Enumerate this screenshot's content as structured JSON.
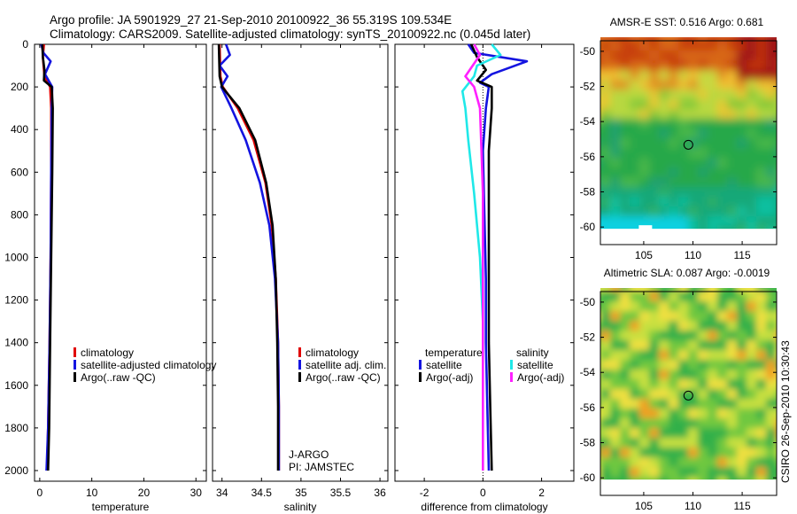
{
  "header": {
    "line1": "Argo profile: JA 5901929_27 21-Sep-2010 20100922_36 55.319S 109.534E",
    "line2": "Climatology: CARS2009. Satellite-adjusted climatology: synTS_20100922.nc (0.045d later)"
  },
  "credit": "CSIRO 26-Sep-2010 10:30:43",
  "colors": {
    "red": "#e00000",
    "blue": "#1414e0",
    "black": "#000000",
    "cyan": "#20e8e8",
    "magenta": "#ff20ff"
  },
  "chart_data": [
    {
      "id": "temperature",
      "type": "line",
      "xlabel": "temperature",
      "xlim": [
        -1,
        32
      ],
      "ylim": [
        2050,
        0
      ],
      "xticks": [
        0,
        10,
        20,
        30
      ],
      "yticks": [
        0,
        200,
        400,
        600,
        800,
        1000,
        1200,
        1400,
        1600,
        1800,
        2000
      ],
      "legend": {
        "position": "lower-right",
        "entries": [
          {
            "label": "climatology",
            "color": "red"
          },
          {
            "label": "satellite-adjusted climatology",
            "color": "blue"
          },
          {
            "label": "Argo(..raw -QC)",
            "color": "black"
          }
        ]
      },
      "series": [
        {
          "name": "climatology",
          "color": "red",
          "points": [
            [
              0.8,
              0
            ],
            [
              0.6,
              60
            ],
            [
              0.9,
              150
            ],
            [
              2.0,
              200
            ],
            [
              2.2,
              300
            ],
            [
              2.2,
              600
            ],
            [
              2.1,
              1000
            ],
            [
              1.9,
              1400
            ],
            [
              1.6,
              1800
            ],
            [
              1.4,
              2000
            ]
          ]
        },
        {
          "name": "satellite-adjusted climatology",
          "color": "blue",
          "points": [
            [
              0.3,
              0
            ],
            [
              0.7,
              40
            ],
            [
              2.1,
              80
            ],
            [
              1.0,
              140
            ],
            [
              2.4,
              200
            ],
            [
              2.3,
              300
            ],
            [
              2.2,
              600
            ],
            [
              2.1,
              1000
            ],
            [
              1.9,
              1400
            ],
            [
              1.6,
              1800
            ],
            [
              1.3,
              2000
            ]
          ]
        },
        {
          "name": "Argo(..raw -QC)",
          "color": "black",
          "points": [
            [
              0.5,
              0
            ],
            [
              0.6,
              60
            ],
            [
              0.9,
              120
            ],
            [
              0.8,
              170
            ],
            [
              2.3,
              200
            ],
            [
              2.5,
              300
            ],
            [
              2.4,
              600
            ],
            [
              2.2,
              1000
            ],
            [
              2.0,
              1400
            ],
            [
              1.8,
              1800
            ],
            [
              1.6,
              2000
            ]
          ]
        }
      ]
    },
    {
      "id": "salinity",
      "type": "line",
      "xlabel": "salinity",
      "xlim": [
        33.88,
        36.1
      ],
      "ylim": [
        2050,
        0
      ],
      "xticks": [
        34,
        34.5,
        35,
        35.5,
        36
      ],
      "xtick_labels": [
        "34",
        "34.5",
        "35",
        "35.5",
        "36"
      ],
      "yticks": [
        0,
        200,
        400,
        600,
        800,
        1000,
        1200,
        1400,
        1600,
        1800,
        2000
      ],
      "legend": {
        "position": "lower-right",
        "entries": [
          {
            "label": "climatology",
            "color": "red"
          },
          {
            "label": "satellite adj. clim.",
            "color": "blue"
          },
          {
            "label": "Argo(..raw -QC)",
            "color": "black"
          }
        ]
      },
      "annotations": [
        "J-ARGO",
        "PI: JAMSTEC"
      ],
      "series": [
        {
          "name": "climatology",
          "color": "red",
          "points": [
            [
              33.97,
              0
            ],
            [
              33.98,
              150
            ],
            [
              34.01,
              200
            ],
            [
              34.2,
              300
            ],
            [
              34.4,
              450
            ],
            [
              34.55,
              650
            ],
            [
              34.63,
              850
            ],
            [
              34.68,
              1100
            ],
            [
              34.71,
              1400
            ],
            [
              34.72,
              1700
            ],
            [
              34.72,
              2000
            ]
          ]
        },
        {
          "name": "satellite adj. clim.",
          "color": "blue",
          "points": [
            [
              34.05,
              0
            ],
            [
              34.1,
              50
            ],
            [
              33.97,
              100
            ],
            [
              34.07,
              150
            ],
            [
              33.99,
              200
            ],
            [
              34.12,
              300
            ],
            [
              34.3,
              450
            ],
            [
              34.48,
              650
            ],
            [
              34.6,
              850
            ],
            [
              34.67,
              1100
            ],
            [
              34.71,
              1400
            ],
            [
              34.72,
              1700
            ],
            [
              34.72,
              2000
            ]
          ]
        },
        {
          "name": "Argo(..raw -QC)",
          "color": "black",
          "points": [
            [
              33.96,
              0
            ],
            [
              33.97,
              150
            ],
            [
              34.0,
              200
            ],
            [
              34.22,
              300
            ],
            [
              34.42,
              450
            ],
            [
              34.56,
              650
            ],
            [
              34.64,
              850
            ],
            [
              34.68,
              1100
            ],
            [
              34.7,
              1400
            ],
            [
              34.71,
              1700
            ],
            [
              34.71,
              2000
            ]
          ]
        }
      ]
    },
    {
      "id": "difference",
      "type": "line",
      "xlabel": "difference from climatology",
      "xlim": [
        -3,
        3.1
      ],
      "ylim": [
        2050,
        0
      ],
      "xticks": [
        -2,
        0,
        2
      ],
      "yticks": [
        0,
        200,
        400,
        600,
        800,
        1000,
        1200,
        1400,
        1600,
        1800,
        2000
      ],
      "legend": {
        "position": "lower-right",
        "entries": [
          {
            "label": "temperature",
            "color": "none"
          },
          {
            "label": "satellite",
            "color": "blue"
          },
          {
            "label": "Argo(-adj)",
            "color": "black"
          },
          {
            "label": "salinity",
            "color": "none"
          },
          {
            "label": "satellite",
            "color": "cyan"
          },
          {
            "label": "Argo(-adj)",
            "color": "magenta"
          }
        ]
      },
      "series": [
        {
          "name": "temperature satellite",
          "color": "blue",
          "points": [
            [
              -0.5,
              0
            ],
            [
              -0.3,
              40
            ],
            [
              1.5,
              80
            ],
            [
              0.3,
              140
            ],
            [
              -0.1,
              180
            ],
            [
              0.2,
              200
            ],
            [
              0.1,
              300
            ],
            [
              0,
              500
            ],
            [
              0.05,
              800
            ],
            [
              0.1,
              1100
            ],
            [
              0.1,
              1400
            ],
            [
              0.15,
              1700
            ],
            [
              0.2,
              2000
            ]
          ]
        },
        {
          "name": "temperature Argo(-adj)",
          "color": "black",
          "points": [
            [
              -0.4,
              0
            ],
            [
              -0.2,
              60
            ],
            [
              0.1,
              120
            ],
            [
              -0.2,
              170
            ],
            [
              0.3,
              200
            ],
            [
              0.3,
              300
            ],
            [
              0.2,
              500
            ],
            [
              0.2,
              800
            ],
            [
              0.2,
              1100
            ],
            [
              0.2,
              1400
            ],
            [
              0.25,
              1700
            ],
            [
              0.3,
              2000
            ]
          ]
        },
        {
          "name": "salinity satellite",
          "color": "cyan",
          "points": [
            [
              0.3,
              0
            ],
            [
              0.6,
              50
            ],
            [
              -0.2,
              100
            ],
            [
              -0.3,
              150
            ],
            [
              -0.7,
              220
            ],
            [
              -0.6,
              300
            ],
            [
              -0.5,
              450
            ],
            [
              -0.3,
              700
            ],
            [
              -0.1,
              1000
            ],
            [
              0,
              1300
            ],
            [
              0,
              1600
            ],
            [
              0,
              2000
            ]
          ]
        },
        {
          "name": "salinity Argo(-adj)",
          "color": "magenta",
          "points": [
            [
              -0.3,
              0
            ],
            [
              -0.1,
              50
            ],
            [
              -0.6,
              150
            ],
            [
              -0.3,
              200
            ],
            [
              -0.1,
              300
            ],
            [
              -0.05,
              500
            ],
            [
              0,
              700
            ],
            [
              0,
              1000
            ],
            [
              0,
              1300
            ],
            [
              0,
              1600
            ],
            [
              0,
              2000
            ]
          ]
        }
      ]
    },
    {
      "id": "sst_map",
      "type": "heatmap",
      "title": "AMSR-E SST: 0.516 Argo: 0.681",
      "xlim": [
        100.6,
        118.5
      ],
      "ylim": [
        -61,
        -49.4
      ],
      "xticks": [
        105,
        110,
        115
      ],
      "yticks": [
        -50,
        -52,
        -54,
        -56,
        -58,
        -60
      ],
      "marker": {
        "lon": 109.534,
        "lat": -55.319
      }
    },
    {
      "id": "sla_map",
      "type": "heatmap",
      "title": "Altimetric SLA: 0.087 Argo: -0.0019",
      "xlim": [
        100.6,
        118.5
      ],
      "ylim": [
        -61,
        -49.4
      ],
      "xticks": [
        105,
        110,
        115
      ],
      "yticks": [
        -50,
        -52,
        -54,
        -56,
        -58,
        -60
      ],
      "marker": {
        "lon": 109.534,
        "lat": -55.319
      }
    }
  ]
}
